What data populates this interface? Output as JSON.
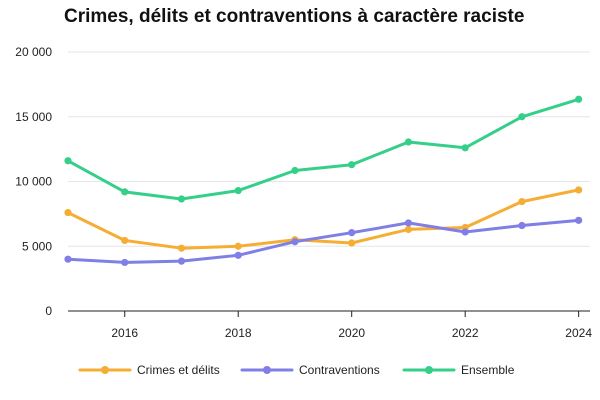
{
  "chart_data": {
    "type": "line",
    "title": "Crimes, délits et contraventions à caractère raciste",
    "xlabel": "",
    "ylabel": "",
    "x": [
      2015,
      2016,
      2017,
      2018,
      2019,
      2020,
      2021,
      2022,
      2023,
      2024
    ],
    "xlim": [
      2015,
      2024.2
    ],
    "ylim": [
      0,
      20000
    ],
    "x_ticks": [
      "2016",
      "2018",
      "2020",
      "2022",
      "2024"
    ],
    "y_ticks": [
      "0",
      "5 000",
      "10 000",
      "15 000",
      "20 000"
    ],
    "grid": "horizontal",
    "legend_position": "bottom",
    "series": [
      {
        "name": "Crimes et délits",
        "color": "#f5ad33",
        "values": [
          7600,
          5450,
          4850,
          5000,
          5500,
          5250,
          6300,
          6450,
          8450,
          9350
        ]
      },
      {
        "name": "Contraventions",
        "color": "#7f7fe6",
        "values": [
          4000,
          3750,
          3850,
          4300,
          5350,
          6050,
          6800,
          6100,
          6600,
          7000
        ]
      },
      {
        "name": "Ensemble",
        "color": "#35cf8a",
        "values": [
          11600,
          9200,
          8650,
          9300,
          10850,
          11300,
          13050,
          12600,
          15000,
          16350
        ]
      }
    ]
  }
}
